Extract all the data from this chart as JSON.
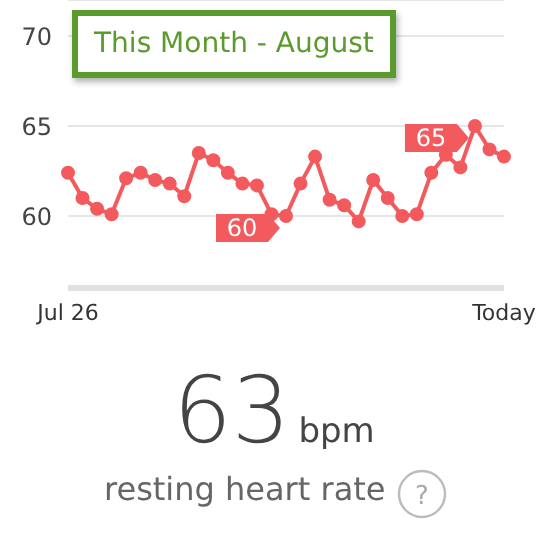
{
  "chart_data": {
    "type": "line",
    "title": "This Month - August",
    "categories": [
      "Jul 26",
      null,
      null,
      null,
      null,
      null,
      null,
      null,
      null,
      null,
      null,
      null,
      null,
      null,
      null,
      null,
      null,
      null,
      null,
      null,
      null,
      null,
      null,
      null,
      null,
      null,
      null,
      null,
      null,
      null,
      "Today"
    ],
    "series": [
      {
        "color": "#f25a5e",
        "values": [
          62.4,
          61,
          60.4,
          60.1,
          62.1,
          62.4,
          62,
          61.8,
          61.1,
          63.5,
          63.1,
          62.4,
          61.8,
          61.7,
          60.1,
          60,
          61.8,
          63.3,
          60.9,
          60.6,
          59.7,
          62,
          61,
          60,
          60.1,
          62.4,
          63.4,
          62.7,
          65,
          63.7,
          63.3
        ],
        "value_labels": [
          null,
          null,
          null,
          null,
          null,
          null,
          null,
          null,
          null,
          null,
          null,
          null,
          null,
          null,
          null,
          "60",
          null,
          null,
          null,
          null,
          null,
          null,
          null,
          null,
          null,
          null,
          null,
          null,
          "65",
          null,
          null
        ]
      }
    ],
    "ylim": [
      56,
      72
    ],
    "yticks": [
      60,
      65,
      70
    ],
    "grid": "y",
    "marker": "circle",
    "line_style": "solid",
    "annotations": [
      "63",
      "bpm",
      "resting heart rate",
      "?"
    ]
  }
}
